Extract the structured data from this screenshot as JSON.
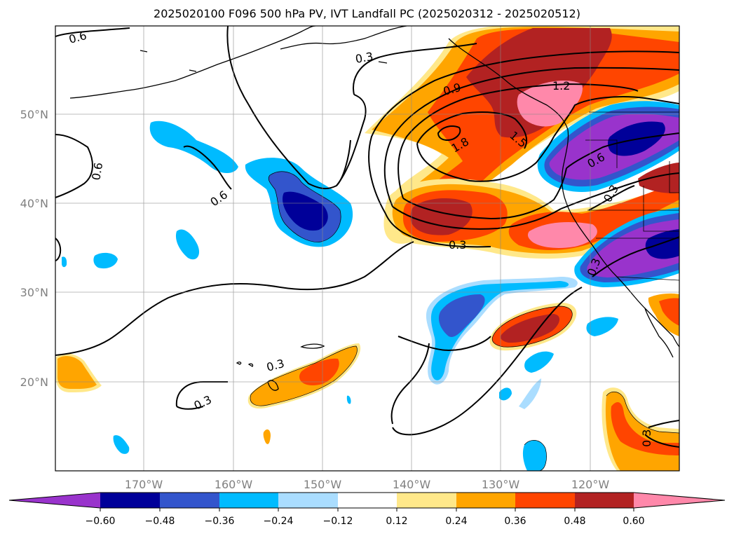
{
  "title": "2025020100 F096 500 hPa PV, IVT Landfall PC (2025020312 - 2025020512)",
  "map": {
    "lat_ticks": [
      "50°N",
      "40°N",
      "30°N",
      "20°N"
    ],
    "lon_ticks": [
      "170°W",
      "160°W",
      "150°W",
      "140°W",
      "130°W",
      "120°W"
    ],
    "grid": true,
    "extent": {
      "lon_min": -180,
      "lon_max": -110,
      "lat_min": 10,
      "lat_max": 60
    }
  },
  "contour_labels": [
    "0.6",
    "0.3",
    "0.6",
    "0.6",
    "0.9",
    "1.2",
    "1.5",
    "1.8",
    "0.6",
    "0.3",
    "0.3",
    "0.3",
    "0.3",
    "0.3",
    "0.3"
  ],
  "colorbar": {
    "ticks": [
      "−0.60",
      "−0.48",
      "−0.36",
      "−0.24",
      "−0.12",
      "0.12",
      "0.24",
      "0.36",
      "0.48",
      "0.60"
    ],
    "colors": {
      "under": "#9933cc",
      "b1": "#000099",
      "b2": "#3355cc",
      "b3": "#00bbff",
      "b4": "#aaddff",
      "b5": "#ffffff",
      "b6": "#ffe88a",
      "b7": "#ffa500",
      "b8": "#ff4500",
      "b9": "#b22222",
      "over": "#ff88aa"
    },
    "extend": "both"
  }
}
